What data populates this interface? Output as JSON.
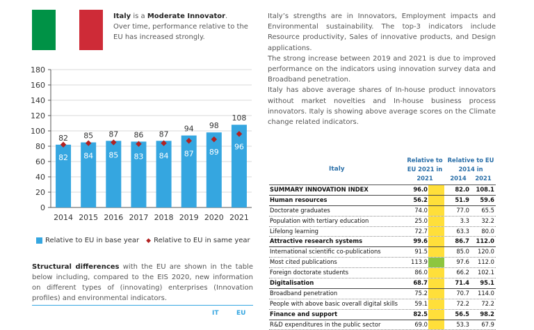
{
  "flag_colors": {
    "green": "#009246",
    "white": "#ffffff",
    "red": "#ce2b37"
  },
  "intro": {
    "country": "Italy",
    "is_a": " is a ",
    "group": "Moderate Innovator",
    "period": ".",
    "text": "Over time, performance relative to the EU has increased strongly."
  },
  "right_text": [
    "Italy’s strengths are in Innovators, Employment impacts and Environmental sustainability. The top-3 indicators include Resource productivity, Sales of innovative products, and Design applications.",
    "The strong increase between 2019 and 2021 is due to improved performance on the indicators using innovation survey data and Broadband penetration.",
    "Italy has above average shares of In-house product innovators without market novelties and In-house business process innovators. Italy is showing above average scores on the Climate change related indicators."
  ],
  "chart_data": {
    "type": "bar",
    "categories": [
      "2014",
      "2015",
      "2016",
      "2017",
      "2018",
      "2019",
      "2020",
      "2021"
    ],
    "series": [
      {
        "name": "Relative to EU in base year",
        "values": [
          82,
          85,
          87,
          86,
          87,
          94,
          98,
          108
        ],
        "color": "#35a6e0"
      },
      {
        "name": "Relative to EU in same year",
        "values": [
          82,
          84,
          85,
          83,
          84,
          87,
          89,
          96
        ],
        "color": "#b22222"
      }
    ],
    "ylim": [
      0,
      180
    ],
    "yticks": [
      0,
      20,
      40,
      60,
      80,
      100,
      120,
      140,
      160,
      180
    ],
    "grid": true
  },
  "legend": {
    "base": "Relative to EU in base year",
    "same": "Relative to EU in same year"
  },
  "struct": {
    "bold": "Structural differences",
    "text": " with the EU are shown in the table below including, compared to the EIS 2020, new information on different types of (innovating) enterprises (Innovation profiles) and environmental indicators."
  },
  "bottom": {
    "it": "IT",
    "eu": "EU"
  },
  "table": {
    "country": "Italy",
    "h1": [
      "Relative to",
      "EU 2021 in",
      "2021"
    ],
    "h2": [
      "Relative to EU",
      "2014 in",
      "2014",
      "2021"
    ],
    "rows": [
      {
        "label": "SUMMARY INNOVATION INDEX",
        "v1": "96.0",
        "v2": "82.0",
        "v3": "108.1",
        "bold": true,
        "cell": "#ffdf3a"
      },
      {
        "label": "Human resources",
        "v1": "56.2",
        "v2": "51.9",
        "v3": "59.6",
        "bold": true,
        "cell": "#ffdf3a"
      },
      {
        "label": "Doctorate graduates",
        "v1": "74.0",
        "v2": "77.0",
        "v3": "65.5",
        "bold": false,
        "cell": "#ffdf3a"
      },
      {
        "label": "Population with tertiary education",
        "v1": "25.0",
        "v2": "3.3",
        "v3": "32.2",
        "bold": false,
        "cell": "#ffdf3a"
      },
      {
        "label": "Lifelong learning",
        "v1": "72.7",
        "v2": "63.3",
        "v3": "80.0",
        "bold": false,
        "cell": "#ffdf3a"
      },
      {
        "label": "Attractive research systems",
        "v1": "99.6",
        "v2": "86.7",
        "v3": "112.0",
        "bold": true,
        "cell": "#ffdf3a"
      },
      {
        "label": "International scientific co-publications",
        "v1": "91.5",
        "v2": "85.0",
        "v3": "120.0",
        "bold": false,
        "cell": "#ffdf3a"
      },
      {
        "label": "Most cited publications",
        "v1": "113.9",
        "v2": "97.6",
        "v3": "112.0",
        "bold": false,
        "cell": "#8dc63f"
      },
      {
        "label": "Foreign doctorate students",
        "v1": "86.0",
        "v2": "66.2",
        "v3": "102.1",
        "bold": false,
        "cell": "#ffdf3a"
      },
      {
        "label": "Digitalisation",
        "v1": "68.7",
        "v2": "71.4",
        "v3": "95.1",
        "bold": true,
        "cell": "#ffdf3a"
      },
      {
        "label": "Broadband penetration",
        "v1": "75.2",
        "v2": "70.7",
        "v3": "114.0",
        "bold": false,
        "cell": "#ffdf3a"
      },
      {
        "label": "People with above basic overall digital skills",
        "v1": "59.1",
        "v2": "72.2",
        "v3": "72.2",
        "bold": false,
        "cell": "#ffdf3a"
      },
      {
        "label": "Finance and support",
        "v1": "82.5",
        "v2": "56.5",
        "v3": "98.2",
        "bold": true,
        "cell": "#ffdf3a"
      },
      {
        "label": "R&D expenditures in the public sector",
        "v1": "69.0",
        "v2": "53.3",
        "v3": "67.9",
        "bold": false,
        "cell": "#ffdf3a"
      }
    ]
  }
}
